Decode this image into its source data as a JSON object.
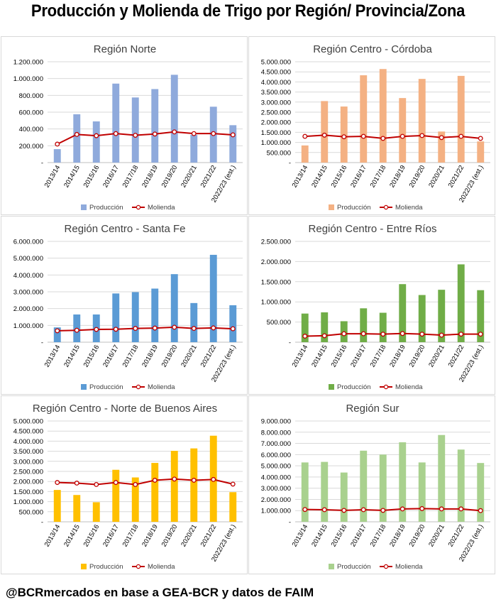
{
  "title": "Producción y Molienda de Trigo por Región/ Provincia/Zona",
  "footer": "@BCRmercados en base a GEA-BCR y datos de FAIM",
  "legend": {
    "production": "Producción",
    "milling": "Molienda"
  },
  "colors": {
    "milling_line": "#c00000",
    "milling_marker_fill": "#ffffff",
    "gridline": "#d9d9d9",
    "axis_text": "#000000"
  },
  "chart_data": [
    {
      "type": "bar",
      "title": "Región Norte",
      "bar_color": "#8faadc",
      "categories": [
        "2013/14",
        "2014/15",
        "2015/16",
        "2016/17",
        "2017/18",
        "2018/19",
        "2019/20",
        "2020/21",
        "2021/22",
        "2022/23 (est.)"
      ],
      "series": [
        {
          "name": "Producción",
          "type": "bar",
          "values": [
            160000,
            575000,
            490000,
            940000,
            775000,
            875000,
            1045000,
            330000,
            665000,
            445000
          ]
        },
        {
          "name": "Molienda",
          "type": "line",
          "values": [
            220000,
            335000,
            320000,
            345000,
            325000,
            340000,
            365000,
            345000,
            345000,
            330000
          ]
        }
      ],
      "yticks": [
        "-",
        "200.000",
        "400.000",
        "600.000",
        "800.000",
        "1.000.000",
        "1.200.000"
      ],
      "ylim": [
        0,
        1200000
      ],
      "grid": true,
      "legend_position": "bottom"
    },
    {
      "type": "bar",
      "title": "Región Centro - Córdoba",
      "bar_color": "#f4b183",
      "categories": [
        "2013/14",
        "2014/15",
        "2015/16",
        "2016/17",
        "2017/18",
        "2018/19",
        "2019/20",
        "2020/21",
        "2021/22",
        "2022/23 (est.)"
      ],
      "series": [
        {
          "name": "Producción",
          "type": "bar",
          "values": [
            850000,
            3050000,
            2780000,
            4330000,
            4640000,
            3200000,
            4150000,
            1540000,
            4300000,
            1050000
          ]
        },
        {
          "name": "Molienda",
          "type": "line",
          "values": [
            1300000,
            1360000,
            1280000,
            1300000,
            1200000,
            1300000,
            1340000,
            1240000,
            1300000,
            1200000
          ]
        }
      ],
      "yticks": [
        "-",
        "500.000",
        "1.000.000",
        "1.500.000",
        "2.000.000",
        "2.500.000",
        "3.000.000",
        "3.500.000",
        "4.000.000",
        "4.500.000",
        "5.000.000"
      ],
      "ylim": [
        0,
        5000000
      ],
      "grid": true,
      "legend_position": "bottom"
    },
    {
      "type": "bar",
      "title": "Región Centro - Santa Fe",
      "bar_color": "#5b9bd5",
      "categories": [
        "2013/14",
        "2014/15",
        "2015/16",
        "2016/17",
        "2017/18",
        "2018/19",
        "2019/20",
        "2020/21",
        "2021/22",
        "2022/23 (est.)"
      ],
      "series": [
        {
          "name": "Producción",
          "type": "bar",
          "values": [
            880000,
            1650000,
            1650000,
            2900000,
            2980000,
            3190000,
            4050000,
            2330000,
            5200000,
            2200000
          ]
        },
        {
          "name": "Molienda",
          "type": "line",
          "values": [
            680000,
            710000,
            760000,
            770000,
            820000,
            840000,
            890000,
            820000,
            850000,
            800000
          ]
        }
      ],
      "yticks": [
        "-",
        "1.000.000",
        "2.000.000",
        "3.000.000",
        "4.000.000",
        "5.000.000",
        "6.000.000"
      ],
      "ylim": [
        0,
        6000000
      ],
      "grid": true,
      "legend_position": "bottom"
    },
    {
      "type": "bar",
      "title": "Región Centro - Entre Ríos",
      "bar_color": "#70ad47",
      "categories": [
        "2013/14",
        "2014/15",
        "2015/16",
        "2016/17",
        "2017/18",
        "2018/19",
        "2019/20",
        "2020/21",
        "2021/22",
        "2022/23 (est.)"
      ],
      "series": [
        {
          "name": "Producción",
          "type": "bar",
          "values": [
            710000,
            740000,
            520000,
            840000,
            730000,
            1440000,
            1170000,
            1300000,
            1930000,
            1290000
          ]
        },
        {
          "name": "Molienda",
          "type": "line",
          "values": [
            150000,
            160000,
            210000,
            210000,
            200000,
            215000,
            200000,
            175000,
            200000,
            200000
          ]
        }
      ],
      "yticks": [
        "-",
        "500.000",
        "1.000.000",
        "1.500.000",
        "2.000.000",
        "2.500.000"
      ],
      "ylim": [
        0,
        2500000
      ],
      "grid": true,
      "legend_position": "bottom"
    },
    {
      "type": "bar",
      "title": "Región Centro - Norte de Buenos Aires",
      "bar_color": "#ffc000",
      "categories": [
        "2013/14",
        "2014/15",
        "2015/16",
        "2016/17",
        "2017/18",
        "2018/19",
        "2019/20",
        "2020/21",
        "2021/22",
        "2022/23 (est.)"
      ],
      "series": [
        {
          "name": "Producción",
          "type": "bar",
          "values": [
            1580000,
            1330000,
            970000,
            2580000,
            2200000,
            2920000,
            3520000,
            3640000,
            4270000,
            1470000
          ]
        },
        {
          "name": "Molienda",
          "type": "line",
          "values": [
            1950000,
            1920000,
            1850000,
            1950000,
            1850000,
            2060000,
            2120000,
            2060000,
            2100000,
            1870000
          ]
        }
      ],
      "yticks": [
        "-",
        "500.000",
        "1.000.000",
        "1.500.000",
        "2.000.000",
        "2.500.000",
        "3.000.000",
        "3.500.000",
        "4.000.000",
        "4.500.000",
        "5.000.000"
      ],
      "ylim": [
        0,
        5000000
      ],
      "grid": true,
      "legend_position": "bottom"
    },
    {
      "type": "bar",
      "title": "Región Sur",
      "bar_color": "#a9d18e",
      "categories": [
        "2013/14",
        "2014/15",
        "2015/16",
        "2016/17",
        "2017/18",
        "2018/19",
        "2019/20",
        "2020/21",
        "2021/22",
        "2022/23 (est.)"
      ],
      "series": [
        {
          "name": "Producción",
          "type": "bar",
          "values": [
            5300000,
            5350000,
            4400000,
            6350000,
            6000000,
            7100000,
            5300000,
            7750000,
            6450000,
            5250000
          ]
        },
        {
          "name": "Molienda",
          "type": "line",
          "values": [
            1100000,
            1080000,
            1020000,
            1080000,
            1020000,
            1150000,
            1180000,
            1150000,
            1150000,
            1000000
          ]
        }
      ],
      "yticks": [
        "-",
        "1.000.000",
        "2.000.000",
        "3.000.000",
        "4.000.000",
        "5.000.000",
        "6.000.000",
        "7.000.000",
        "8.000.000",
        "9.000.000"
      ],
      "ylim": [
        0,
        9000000
      ],
      "grid": true,
      "legend_position": "bottom"
    }
  ]
}
